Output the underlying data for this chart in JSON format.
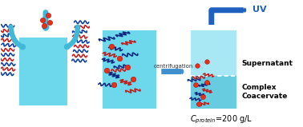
{
  "bg_color": "#ffffff",
  "light_blue_fill": "#6dd8ec",
  "light_blue_box": "#7ad8ea",
  "light_blue_top": "#b0e8f4",
  "mid_blue": "#40b8d8",
  "dark_blue": "#2060c0",
  "arrow_blue": "#4090d0",
  "red": "#e83018",
  "polymer_blue": "#1040a0",
  "polymer_red": "#c02020",
  "polymer_dark_blue": "#102880",
  "figsize": [
    3.78,
    1.59
  ],
  "dpi": 100,
  "centrifugation_text": "centrifugation",
  "supernatant_text": "Supernatant",
  "complex_text": "Complex\nCoacervate",
  "uv_text": "UV"
}
